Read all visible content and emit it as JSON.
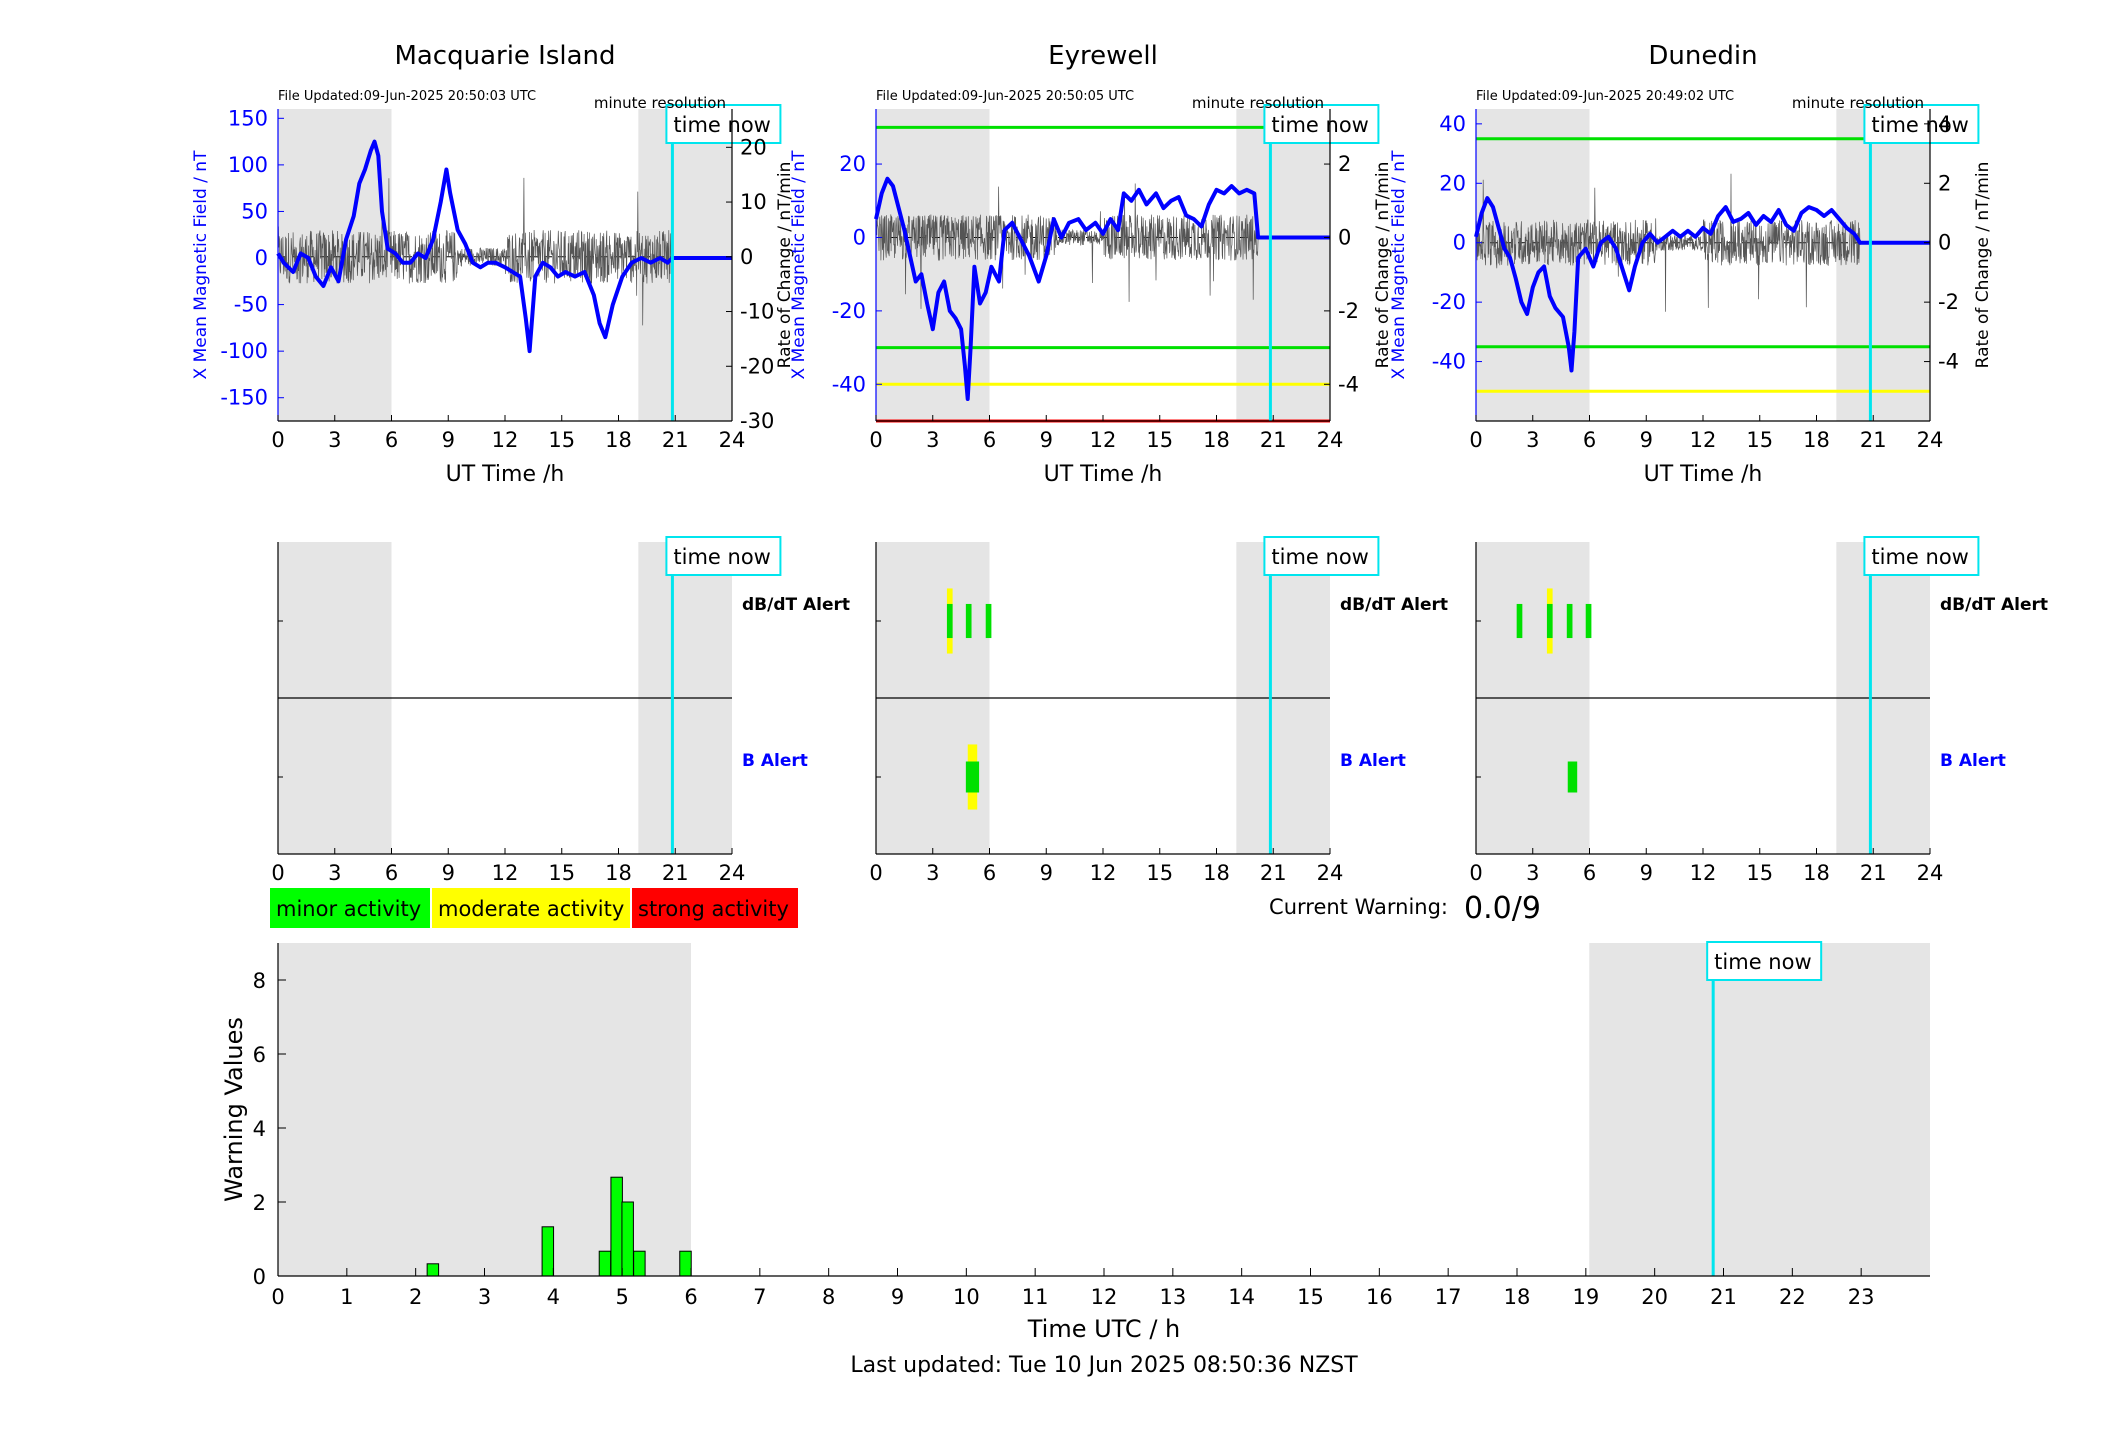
{
  "stations": [
    {
      "title": "Macquarie Island",
      "file_updated": "File Updated:09-Jun-2025 20:50:03 UTC",
      "resolution": "minute resolution",
      "time_now_label": "time now",
      "xlabel": "UT Time /h",
      "ylabel_left": "X Mean Magnetic Field / nT",
      "ylabel_right": "Rate of Change / nT/min",
      "ylim_left": [
        -175,
        160
      ],
      "ylim_right": [
        -30,
        27
      ],
      "left_ticks": [
        "150",
        "100",
        "50",
        "0",
        "-50",
        "-100",
        "-150"
      ],
      "left_tick_values": [
        150,
        100,
        50,
        0,
        -50,
        -100,
        -150
      ],
      "right_ticks": [
        "20",
        "10",
        "0",
        "-10",
        "-20",
        "-30"
      ],
      "right_tick_values": [
        20,
        10,
        0,
        -10,
        -20,
        -30
      ],
      "thresholds": [],
      "field_series": [
        [
          0,
          5
        ],
        [
          0.3,
          -5
        ],
        [
          0.8,
          -15
        ],
        [
          1.2,
          5
        ],
        [
          1.6,
          0
        ],
        [
          2,
          -20
        ],
        [
          2.4,
          -30
        ],
        [
          2.8,
          -10
        ],
        [
          3.2,
          -25
        ],
        [
          3.6,
          20
        ],
        [
          4,
          45
        ],
        [
          4.3,
          80
        ],
        [
          4.6,
          95
        ],
        [
          4.9,
          115
        ],
        [
          5.1,
          125
        ],
        [
          5.3,
          110
        ],
        [
          5.5,
          50
        ],
        [
          5.8,
          10
        ],
        [
          6.2,
          5
        ],
        [
          6.6,
          -5
        ],
        [
          7,
          -5
        ],
        [
          7.4,
          5
        ],
        [
          7.8,
          0
        ],
        [
          8.2,
          20
        ],
        [
          8.6,
          60
        ],
        [
          8.9,
          95
        ],
        [
          9.1,
          70
        ],
        [
          9.5,
          30
        ],
        [
          9.9,
          15
        ],
        [
          10.3,
          -5
        ],
        [
          10.7,
          -10
        ],
        [
          11.1,
          -5
        ],
        [
          11.5,
          -5
        ],
        [
          12,
          -10
        ],
        [
          12.4,
          -15
        ],
        [
          12.8,
          -20
        ],
        [
          13.1,
          -65
        ],
        [
          13.3,
          -100
        ],
        [
          13.6,
          -20
        ],
        [
          14,
          -5
        ],
        [
          14.4,
          -10
        ],
        [
          14.8,
          -20
        ],
        [
          15.2,
          -15
        ],
        [
          15.7,
          -20
        ],
        [
          16.2,
          -15
        ],
        [
          16.7,
          -40
        ],
        [
          17,
          -70
        ],
        [
          17.3,
          -85
        ],
        [
          17.7,
          -50
        ],
        [
          18.2,
          -20
        ],
        [
          18.7,
          -5
        ],
        [
          19.2,
          0
        ],
        [
          19.7,
          -5
        ],
        [
          20.2,
          0
        ],
        [
          20.6,
          -5
        ],
        [
          20.85,
          0
        ],
        [
          24,
          0
        ]
      ],
      "derivative_noise": {
        "amplitude_right_units": 14,
        "start_h": 0,
        "end_h": 20.85
      },
      "night_regions": [
        [
          0,
          6
        ],
        [
          19.05,
          24
        ]
      ],
      "time_now_h": 20.85,
      "alerts": {
        "dbdt": [],
        "b": []
      },
      "dbdt_label": "dB/dT Alert",
      "b_label": "B Alert"
    },
    {
      "title": "Eyrewell",
      "file_updated": "File Updated:09-Jun-2025 20:50:05 UTC",
      "resolution": "minute resolution",
      "time_now_label": "time now",
      "xlabel": "UT Time /h",
      "ylabel_left": "X Mean Magnetic Field / nT",
      "ylabel_right": "Rate of Change / nT/min",
      "ylim_left": [
        -50,
        35
      ],
      "ylim_right": [
        -5,
        3.5
      ],
      "left_ticks": [
        "20",
        "0",
        "-20",
        "-40"
      ],
      "left_tick_values": [
        20,
        0,
        -20,
        -40
      ],
      "right_ticks": [
        "2",
        "0",
        "-2",
        "-4"
      ],
      "right_tick_values": [
        2,
        0,
        -2,
        -4
      ],
      "thresholds": [
        {
          "value": 30,
          "color": "#00e000"
        },
        {
          "value": -30,
          "color": "#00e000"
        },
        {
          "value": -40,
          "color": "#ffff00"
        },
        {
          "value": -50,
          "color": "#ff0000"
        }
      ],
      "field_series": [
        [
          0,
          5
        ],
        [
          0.3,
          12
        ],
        [
          0.6,
          16
        ],
        [
          0.9,
          14
        ],
        [
          1.2,
          8
        ],
        [
          1.5,
          2
        ],
        [
          1.8,
          -5
        ],
        [
          2.1,
          -12
        ],
        [
          2.4,
          -10
        ],
        [
          2.7,
          -18
        ],
        [
          3,
          -25
        ],
        [
          3.3,
          -15
        ],
        [
          3.6,
          -12
        ],
        [
          3.9,
          -20
        ],
        [
          4.2,
          -22
        ],
        [
          4.5,
          -25
        ],
        [
          4.7,
          -35
        ],
        [
          4.85,
          -44
        ],
        [
          5,
          -30
        ],
        [
          5.2,
          -8
        ],
        [
          5.5,
          -18
        ],
        [
          5.8,
          -15
        ],
        [
          6.1,
          -8
        ],
        [
          6.5,
          -12
        ],
        [
          6.8,
          2
        ],
        [
          7.2,
          4
        ],
        [
          7.6,
          0
        ],
        [
          8.1,
          -5
        ],
        [
          8.6,
          -12
        ],
        [
          9,
          -5
        ],
        [
          9.4,
          5
        ],
        [
          9.8,
          0
        ],
        [
          10.2,
          4
        ],
        [
          10.7,
          5
        ],
        [
          11.1,
          2
        ],
        [
          11.6,
          4
        ],
        [
          12,
          1
        ],
        [
          12.4,
          5
        ],
        [
          12.8,
          2
        ],
        [
          13.1,
          12
        ],
        [
          13.5,
          10
        ],
        [
          13.9,
          13
        ],
        [
          14.3,
          9
        ],
        [
          14.8,
          12
        ],
        [
          15.2,
          8
        ],
        [
          15.6,
          10
        ],
        [
          16,
          11
        ],
        [
          16.4,
          6
        ],
        [
          16.8,
          5
        ],
        [
          17.2,
          3
        ],
        [
          17.6,
          9
        ],
        [
          18,
          13
        ],
        [
          18.4,
          12
        ],
        [
          18.8,
          14
        ],
        [
          19.2,
          12
        ],
        [
          19.6,
          13
        ],
        [
          20,
          12
        ],
        [
          20.2,
          0
        ],
        [
          24,
          0
        ]
      ],
      "derivative_noise": {
        "amplitude_right_units": 1.8,
        "start_h": 0,
        "end_h": 20.2
      },
      "night_regions": [
        [
          0,
          6
        ],
        [
          19.05,
          24
        ]
      ],
      "time_now_h": 20.85,
      "alerts": {
        "dbdt": [
          {
            "x": 3.9,
            "color": "#ffff00",
            "w": 0.3,
            "h": 0.42
          },
          {
            "x": 3.9,
            "color": "#00e000",
            "w": 0.3,
            "h": 0.22
          },
          {
            "x": 4.9,
            "color": "#00e000",
            "w": 0.3,
            "h": 0.22
          },
          {
            "x": 5.95,
            "color": "#00e000",
            "w": 0.3,
            "h": 0.22
          }
        ],
        "b": [
          {
            "x": 5.1,
            "color": "#ffff00",
            "w": 0.5,
            "h": 0.42
          },
          {
            "x": 5.1,
            "color": "#00e000",
            "w": 0.7,
            "h": 0.2
          }
        ]
      },
      "dbdt_label": "dB/dT Alert",
      "b_label": "B Alert"
    },
    {
      "title": "Dunedin",
      "file_updated": "File Updated:09-Jun-2025 20:49:02 UTC",
      "resolution": "minute resolution",
      "time_now_label": "time now",
      "xlabel": "UT Time /h",
      "ylabel_left": "X Mean Magnetic Field / nT",
      "ylabel_right": "Rate of Change / nT/min",
      "ylim_left": [
        -60,
        45
      ],
      "ylim_right": [
        -6,
        4.5
      ],
      "left_ticks": [
        "40",
        "20",
        "0",
        "-20",
        "-40"
      ],
      "left_tick_values": [
        40,
        20,
        0,
        -20,
        -40
      ],
      "right_ticks": [
        "4",
        "2",
        "0",
        "-2",
        "-4"
      ],
      "right_tick_values": [
        4,
        2,
        0,
        -2,
        -4
      ],
      "thresholds": [
        {
          "value": 35,
          "color": "#00e000"
        },
        {
          "value": -35,
          "color": "#00e000"
        },
        {
          "value": -50,
          "color": "#ffff00"
        }
      ],
      "field_series": [
        [
          0,
          2
        ],
        [
          0.3,
          10
        ],
        [
          0.6,
          15
        ],
        [
          0.9,
          12
        ],
        [
          1.2,
          5
        ],
        [
          1.5,
          -2
        ],
        [
          1.8,
          -5
        ],
        [
          2.1,
          -12
        ],
        [
          2.4,
          -20
        ],
        [
          2.7,
          -24
        ],
        [
          3,
          -15
        ],
        [
          3.3,
          -10
        ],
        [
          3.6,
          -8
        ],
        [
          3.9,
          -18
        ],
        [
          4.2,
          -22
        ],
        [
          4.6,
          -25
        ],
        [
          4.9,
          -35
        ],
        [
          5.05,
          -43
        ],
        [
          5.2,
          -30
        ],
        [
          5.4,
          -5
        ],
        [
          5.8,
          -2
        ],
        [
          6.2,
          -8
        ],
        [
          6.6,
          0
        ],
        [
          7,
          2
        ],
        [
          7.4,
          -2
        ],
        [
          7.8,
          -10
        ],
        [
          8.1,
          -16
        ],
        [
          8.4,
          -8
        ],
        [
          8.8,
          0
        ],
        [
          9.2,
          3
        ],
        [
          9.6,
          0
        ],
        [
          10,
          2
        ],
        [
          10.4,
          4
        ],
        [
          10.8,
          2
        ],
        [
          11.2,
          4
        ],
        [
          11.6,
          2
        ],
        [
          12,
          5
        ],
        [
          12.4,
          3
        ],
        [
          12.8,
          9
        ],
        [
          13.2,
          12
        ],
        [
          13.6,
          7
        ],
        [
          14,
          8
        ],
        [
          14.4,
          10
        ],
        [
          14.8,
          6
        ],
        [
          15.2,
          9
        ],
        [
          15.6,
          7
        ],
        [
          16,
          11
        ],
        [
          16.4,
          6
        ],
        [
          16.8,
          4
        ],
        [
          17.2,
          10
        ],
        [
          17.6,
          12
        ],
        [
          18,
          11
        ],
        [
          18.4,
          9
        ],
        [
          18.8,
          11
        ],
        [
          19.2,
          8
        ],
        [
          19.6,
          5
        ],
        [
          20,
          3
        ],
        [
          20.3,
          0
        ],
        [
          24,
          0
        ]
      ],
      "derivative_noise": {
        "amplitude_right_units": 2.2,
        "start_h": 0,
        "end_h": 20.3
      },
      "night_regions": [
        [
          0,
          6
        ],
        [
          19.05,
          24
        ]
      ],
      "time_now_h": 20.85,
      "alerts": {
        "dbdt": [
          {
            "x": 2.3,
            "color": "#00e000",
            "w": 0.3,
            "h": 0.22
          },
          {
            "x": 3.9,
            "color": "#ffff00",
            "w": 0.3,
            "h": 0.42
          },
          {
            "x": 3.9,
            "color": "#00e000",
            "w": 0.3,
            "h": 0.22
          },
          {
            "x": 4.95,
            "color": "#00e000",
            "w": 0.3,
            "h": 0.22
          },
          {
            "x": 5.95,
            "color": "#00e000",
            "w": 0.3,
            "h": 0.22
          }
        ],
        "b": [
          {
            "x": 5.1,
            "color": "#00e000",
            "w": 0.5,
            "h": 0.2
          }
        ]
      },
      "dbdt_label": "dB/dT Alert",
      "b_label": "B Alert"
    }
  ],
  "x_ticks": [
    "0",
    "3",
    "6",
    "9",
    "12",
    "15",
    "18",
    "21",
    "24"
  ],
  "legend": {
    "items": [
      {
        "label": "minor activity",
        "color": "#00ff00"
      },
      {
        "label": "moderate activity",
        "color": "#ffff00"
      },
      {
        "label": "strong activity",
        "color": "#ff0000"
      }
    ]
  },
  "current_warning_label": "Current Warning:",
  "current_warning_value": "0.0/9",
  "chart_data": {
    "type": "bar",
    "title": "",
    "xlabel": "Time UTC / h",
    "ylabel": "Warning Values",
    "xlim": [
      0,
      24
    ],
    "ylim": [
      0,
      9
    ],
    "x_ticks": [
      "0",
      "1",
      "2",
      "3",
      "4",
      "5",
      "6",
      "7",
      "8",
      "9",
      "10",
      "11",
      "12",
      "13",
      "14",
      "15",
      "16",
      "17",
      "18",
      "19",
      "20",
      "21",
      "22",
      "23"
    ],
    "y_ticks": [
      "0",
      "2",
      "4",
      "6",
      "8"
    ],
    "bar_color": "#00ff00",
    "bar_width_h": 0.1667,
    "x": [
      2.25,
      3.92,
      4.75,
      4.92,
      5.08,
      5.25,
      5.92
    ],
    "values": [
      0.33,
      1.33,
      0.67,
      2.67,
      2.0,
      0.67,
      0.67
    ],
    "night_regions": [
      [
        0,
        6
      ],
      [
        19.05,
        24
      ]
    ],
    "time_now_h": 20.85,
    "time_now_label": "time now"
  },
  "footer": "Last updated: Tue 10 Jun 2025 08:50:36 NZST",
  "colors": {
    "field": "#0000ff",
    "time_now": "#00e5ee",
    "night": "#e5e5e5",
    "derivative": "#555555",
    "axis": "#000000"
  }
}
